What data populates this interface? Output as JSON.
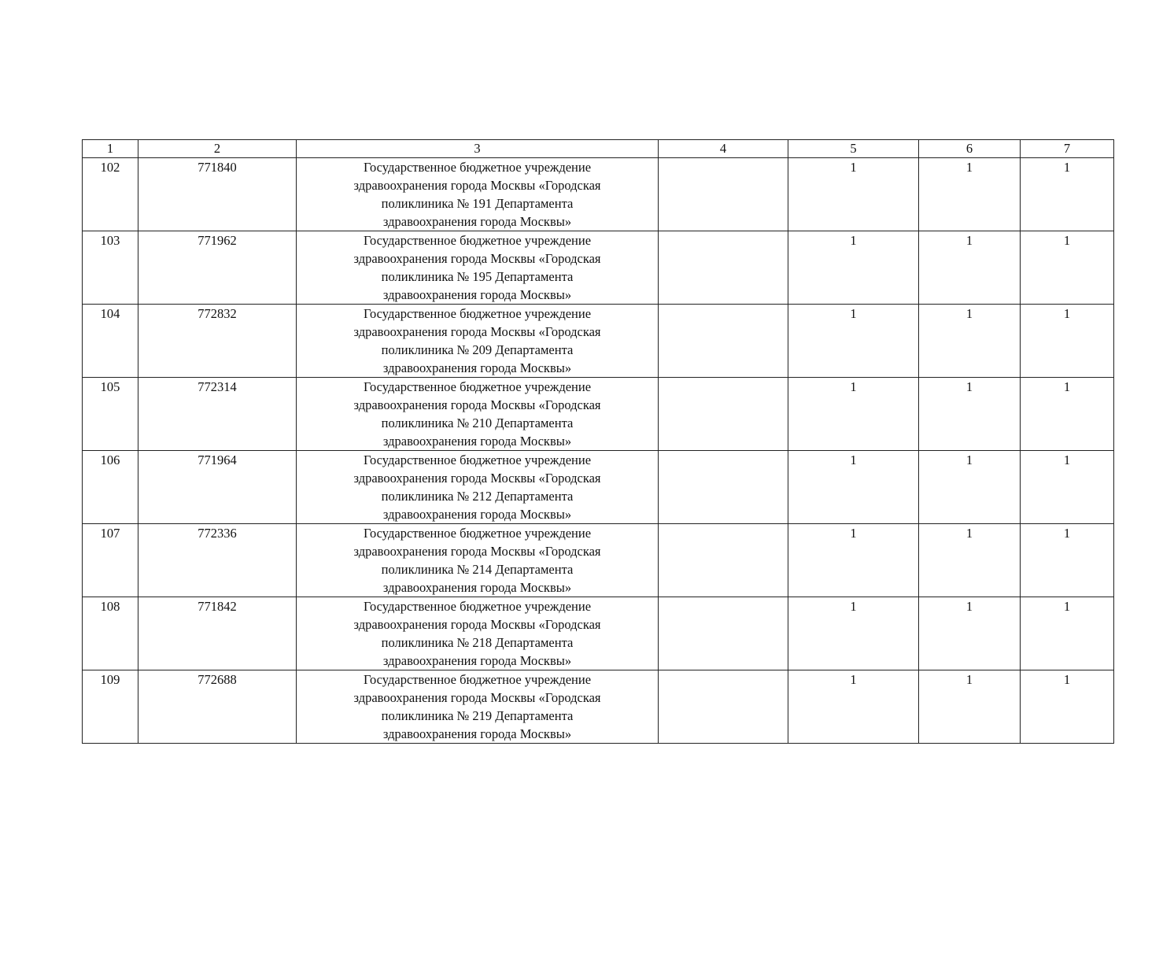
{
  "table": {
    "headers": [
      "1",
      "2",
      "3",
      "4",
      "5",
      "6",
      "7"
    ],
    "rows": [
      {
        "num": "102",
        "code": "771840",
        "name": [
          "Государственное бюджетное учреждение",
          "здравоохранения города Москвы «Городская",
          "поликлиника № 191 Департамента",
          "здравоохранения города Москвы»"
        ],
        "c4": "",
        "c5": "1",
        "c6": "1",
        "c7": "1"
      },
      {
        "num": "103",
        "code": "771962",
        "name": [
          "Государственное бюджетное учреждение",
          "здравоохранения города Москвы «Городская",
          "поликлиника № 195 Департамента",
          "здравоохранения города Москвы»"
        ],
        "c4": "",
        "c5": "1",
        "c6": "1",
        "c7": "1"
      },
      {
        "num": "104",
        "code": "772832",
        "name": [
          "Государственное бюджетное учреждение",
          "здравоохранения города Москвы «Городская",
          "поликлиника № 209 Департамента",
          "здравоохранения города Москвы»"
        ],
        "c4": "",
        "c5": "1",
        "c6": "1",
        "c7": "1"
      },
      {
        "num": "105",
        "code": "772314",
        "name": [
          "Государственное бюджетное учреждение",
          "здравоохранения города Москвы «Городская",
          "поликлиника № 210 Департамента",
          "здравоохранения города Москвы»"
        ],
        "c4": "",
        "c5": "1",
        "c6": "1",
        "c7": "1"
      },
      {
        "num": "106",
        "code": "771964",
        "name": [
          "Государственное бюджетное учреждение",
          "здравоохранения города Москвы «Городская",
          "поликлиника № 212 Департамента",
          "здравоохранения города Москвы»"
        ],
        "c4": "",
        "c5": "1",
        "c6": "1",
        "c7": "1"
      },
      {
        "num": "107",
        "code": "772336",
        "name": [
          "Государственное бюджетное учреждение",
          "здравоохранения города Москвы «Городская",
          "поликлиника № 214 Департамента",
          "здравоохранения города Москвы»"
        ],
        "c4": "",
        "c5": "1",
        "c6": "1",
        "c7": "1"
      },
      {
        "num": "108",
        "code": "771842",
        "name": [
          "Государственное бюджетное учреждение",
          "здравоохранения города Москвы «Городская",
          "поликлиника № 218 Департамента",
          "здравоохранения города Москвы»"
        ],
        "c4": "",
        "c5": "1",
        "c6": "1",
        "c7": "1"
      },
      {
        "num": "109",
        "code": "772688",
        "name": [
          "Государственное бюджетное учреждение",
          "здравоохранения города Москвы «Городская",
          "поликлиника № 219 Департамента",
          "здравоохранения города Москвы»"
        ],
        "c4": "",
        "c5": "1",
        "c6": "1",
        "c7": "1"
      }
    ]
  }
}
